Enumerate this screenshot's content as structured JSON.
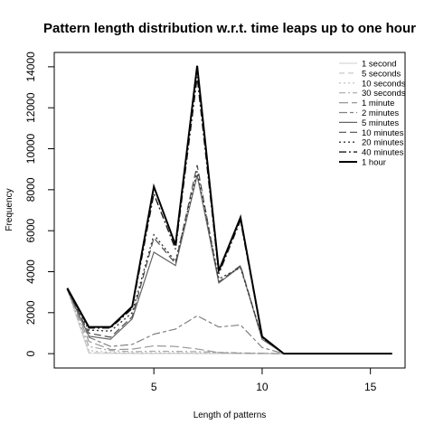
{
  "chart_data": {
    "type": "line",
    "title": "Pattern length distribution w.r.t. time leaps up to one hour",
    "xlabel": "Length of patterns",
    "ylabel": "Frequency",
    "xlim": [
      0.4,
      16.6
    ],
    "ylim": [
      -700,
      14700
    ],
    "xticks": [
      5,
      10,
      15
    ],
    "yticks": [
      0,
      2000,
      4000,
      6000,
      8000,
      10000,
      12000,
      14000
    ],
    "grid": false,
    "legend_position": "top-right",
    "x": [
      1,
      2,
      3,
      4,
      5,
      6,
      7,
      8,
      9,
      10,
      11,
      12,
      13,
      14,
      15,
      16
    ],
    "series": [
      {
        "name": "1 second",
        "color": "#d8d8d8",
        "dash": "",
        "width": 1.2,
        "values": [
          3150,
          20,
          10,
          5,
          5,
          5,
          5,
          5,
          5,
          5,
          0,
          0,
          0,
          0,
          0,
          0
        ]
      },
      {
        "name": "5 seconds",
        "color": "#c8c8c8",
        "dash": "6,4",
        "width": 1.2,
        "values": [
          3150,
          60,
          30,
          15,
          15,
          15,
          15,
          10,
          10,
          5,
          0,
          0,
          0,
          0,
          0,
          0
        ]
      },
      {
        "name": "10 seconds",
        "color": "#bbbbbb",
        "dash": "2,3",
        "width": 1.2,
        "values": [
          3150,
          150,
          60,
          40,
          40,
          35,
          30,
          20,
          15,
          10,
          0,
          0,
          0,
          0,
          0,
          0
        ]
      },
      {
        "name": "30 seconds",
        "color": "#a8a8a8",
        "dash": "7,3,2,3",
        "width": 1.2,
        "values": [
          3150,
          350,
          150,
          100,
          120,
          110,
          100,
          60,
          40,
          20,
          0,
          0,
          0,
          0,
          0,
          0
        ]
      },
      {
        "name": "1 minute",
        "color": "#969696",
        "dash": "10,4",
        "width": 1.2,
        "values": [
          3150,
          600,
          200,
          220,
          380,
          350,
          230,
          50,
          20,
          10,
          0,
          0,
          0,
          0,
          0,
          0
        ]
      },
      {
        "name": "2 minutes",
        "color": "#808080",
        "dash": "9,3,4,3",
        "width": 1.2,
        "values": [
          3150,
          800,
          350,
          450,
          950,
          1200,
          1850,
          1300,
          1400,
          300,
          0,
          0,
          0,
          0,
          0,
          0
        ]
      },
      {
        "name": "5 minutes",
        "color": "#666666",
        "dash": "",
        "width": 1.2,
        "values": [
          3150,
          850,
          700,
          1700,
          4950,
          4300,
          8700,
          3450,
          4250,
          700,
          0,
          0,
          0,
          0,
          0,
          0
        ]
      },
      {
        "name": "10 minutes",
        "color": "#4d4d4d",
        "dash": "8,4",
        "width": 1.2,
        "values": [
          3150,
          1000,
          800,
          1800,
          5650,
          4400,
          9200,
          3500,
          4300,
          750,
          0,
          0,
          0,
          0,
          0,
          0
        ]
      },
      {
        "name": "20 minutes",
        "color": "#333333",
        "dash": "2,3",
        "width": 1.4,
        "values": [
          3150,
          1150,
          1100,
          2000,
          5800,
          4500,
          8900,
          3650,
          4200,
          780,
          0,
          0,
          0,
          0,
          0,
          0
        ]
      },
      {
        "name": "40 minutes",
        "color": "#1a1a1a",
        "dash": "8,3,2,3",
        "width": 1.4,
        "values": [
          3150,
          1250,
          1250,
          2200,
          7800,
          5100,
          13500,
          3900,
          6500,
          800,
          0,
          0,
          0,
          0,
          0,
          0
        ]
      },
      {
        "name": "1 hour",
        "color": "#000000",
        "dash": "",
        "width": 2,
        "values": [
          3200,
          1300,
          1300,
          2300,
          8150,
          5300,
          14050,
          4050,
          6650,
          830,
          0,
          0,
          0,
          0,
          0,
          0
        ]
      }
    ]
  }
}
